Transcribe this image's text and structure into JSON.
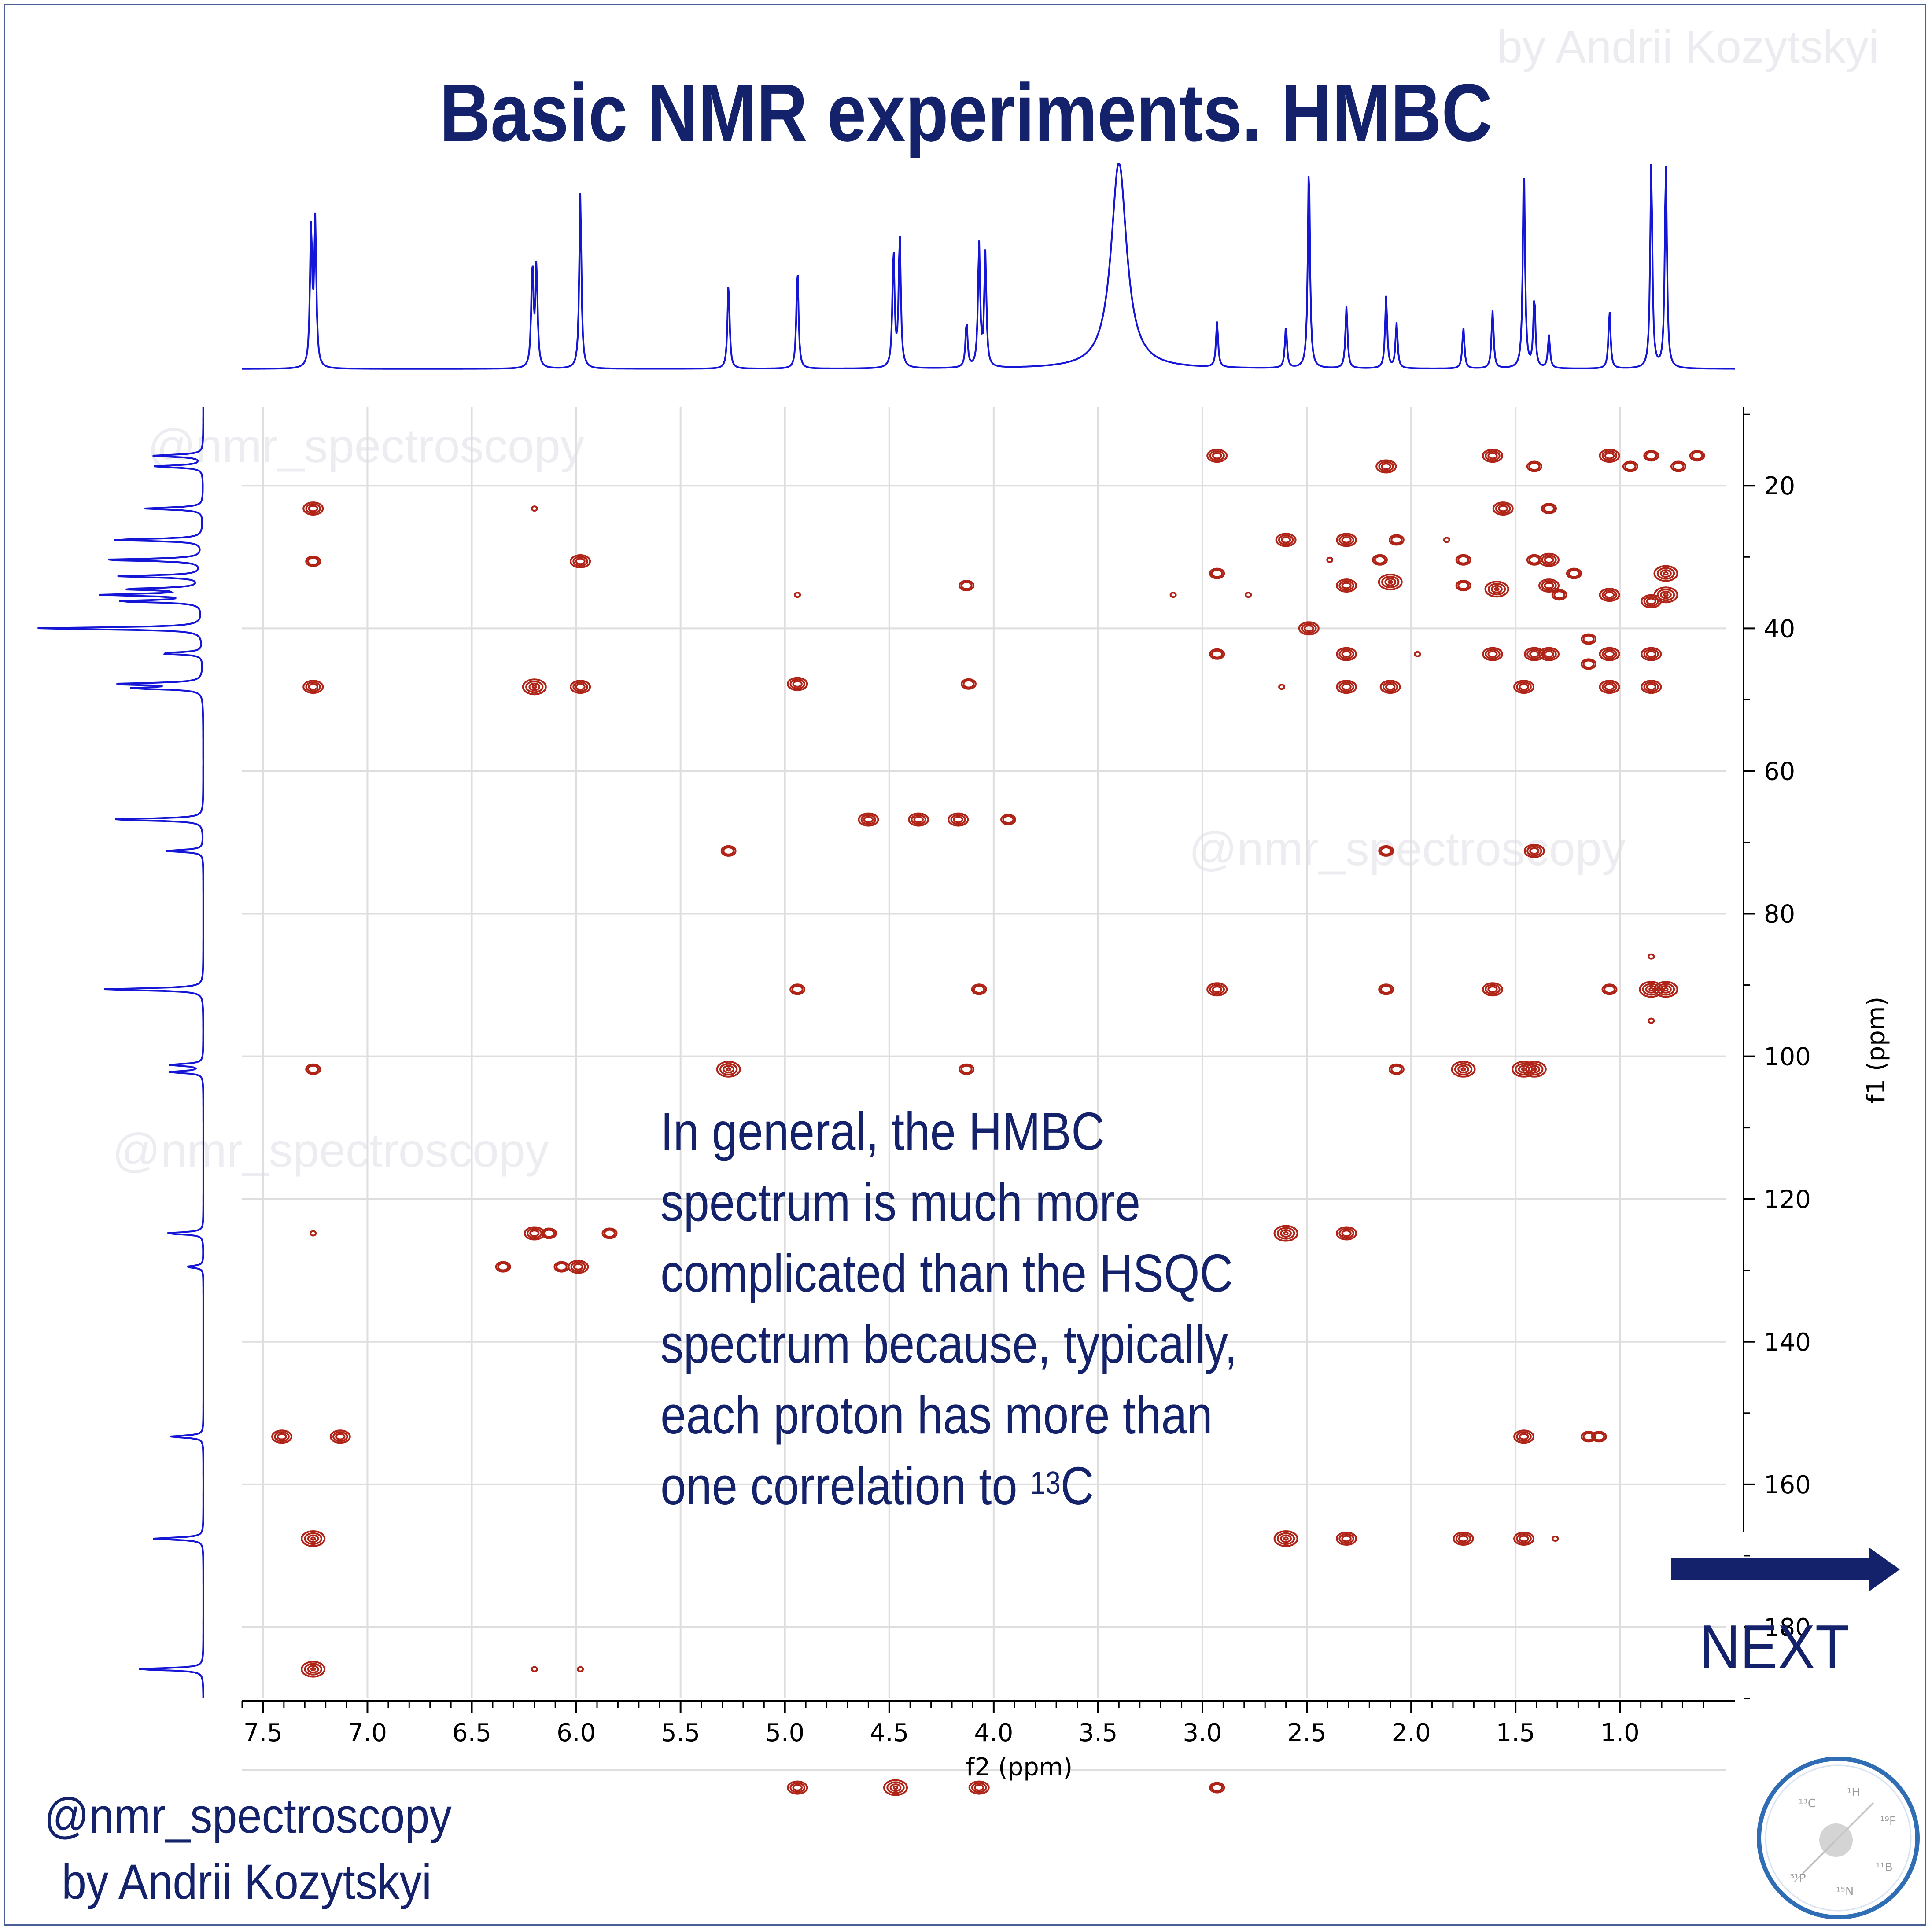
{
  "page": {
    "title": "Basic NMR experiments. HMBC",
    "watermark_text": "@nmr_spectroscopy",
    "watermark_author": "by Andrii Kozytskyi",
    "note": {
      "line1": "In general, the HMBC",
      "line2": "spectrum is much more",
      "line3": "complicated than the HSQC",
      "line4": "spectrum because, typically,",
      "line5": "each proton has more than",
      "line6_prefix": "one correlation to ",
      "line6_sup": "13",
      "line6_suffix": "C"
    },
    "next_label": "NEXT",
    "footer_handle": "@nmr_spectroscopy",
    "footer_author": "by Andrii Kozytskyi",
    "logo_nuclei": [
      "13C",
      "1H",
      "19F",
      "11B",
      "15N",
      "31P"
    ],
    "colors": {
      "title": "#13226b",
      "spectrum": "#1515d6",
      "contour": "#b02418",
      "grid": "#dedede"
    }
  },
  "chart_data": {
    "type": "heatmap",
    "xlabel": "f2 (ppm)",
    "ylabel": "f1 (ppm)",
    "xlim": [
      7.6,
      0.45
    ],
    "ylim": [
      9,
      190
    ],
    "x_ticks": [
      "7.5",
      "7.0",
      "6.5",
      "6.0",
      "5.5",
      "5.0",
      "4.5",
      "4.0",
      "3.5",
      "3.0",
      "2.5",
      "2.0",
      "1.5",
      "1.0"
    ],
    "y_ticks": [
      "20",
      "40",
      "60",
      "80",
      "100",
      "120",
      "140",
      "160",
      "180"
    ],
    "grid": true,
    "top_projection": {
      "label": "1H spectrum",
      "peaks": [
        {
          "ppm": 7.27,
          "h": 0.68
        },
        {
          "ppm": 7.25,
          "h": 0.7
        },
        {
          "ppm": 6.21,
          "h": 0.5
        },
        {
          "ppm": 6.19,
          "h": 0.49
        },
        {
          "ppm": 5.98,
          "h": 0.85
        },
        {
          "ppm": 5.27,
          "h": 0.42
        },
        {
          "ppm": 4.94,
          "h": 0.49
        },
        {
          "ppm": 4.48,
          "h": 0.57
        },
        {
          "ppm": 4.45,
          "h": 0.64
        },
        {
          "ppm": 4.13,
          "h": 0.22
        },
        {
          "ppm": 4.07,
          "h": 0.6
        },
        {
          "ppm": 4.04,
          "h": 0.55
        },
        {
          "ppm": 3.4,
          "h": 1.0
        },
        {
          "ppm": 2.93,
          "h": 0.22
        },
        {
          "ppm": 2.6,
          "h": 0.2
        },
        {
          "ppm": 2.49,
          "h": 1.0
        },
        {
          "ppm": 2.31,
          "h": 0.3
        },
        {
          "ppm": 2.12,
          "h": 0.35
        },
        {
          "ppm": 2.07,
          "h": 0.22
        },
        {
          "ppm": 1.75,
          "h": 0.2
        },
        {
          "ppm": 1.61,
          "h": 0.28
        },
        {
          "ppm": 1.46,
          "h": 1.0
        },
        {
          "ppm": 1.41,
          "h": 0.34
        },
        {
          "ppm": 1.34,
          "h": 0.16
        },
        {
          "ppm": 1.05,
          "h": 0.28
        },
        {
          "ppm": 0.85,
          "h": 1.0
        },
        {
          "ppm": 0.78,
          "h": 1.0
        }
      ]
    },
    "left_projection": {
      "label": "13C spectrum",
      "peaks": [
        {
          "ppm": 15.8,
          "h": 0.3
        },
        {
          "ppm": 17.3,
          "h": 0.3
        },
        {
          "ppm": 23.2,
          "h": 0.35
        },
        {
          "ppm": 27.6,
          "h": 0.55
        },
        {
          "ppm": 30.4,
          "h": 0.6
        },
        {
          "ppm": 32.7,
          "h": 0.5
        },
        {
          "ppm": 34.5,
          "h": 0.45
        },
        {
          "ppm": 35.3,
          "h": 0.58
        },
        {
          "ppm": 36.2,
          "h": 0.5
        },
        {
          "ppm": 40.0,
          "h": 1.0
        },
        {
          "ppm": 43.5,
          "h": 0.25
        },
        {
          "ppm": 47.8,
          "h": 0.52
        },
        {
          "ppm": 48.4,
          "h": 0.4
        },
        {
          "ppm": 66.8,
          "h": 0.55
        },
        {
          "ppm": 71.2,
          "h": 0.22
        },
        {
          "ppm": 90.6,
          "h": 0.6
        },
        {
          "ppm": 101.2,
          "h": 0.2
        },
        {
          "ppm": 102.2,
          "h": 0.2
        },
        {
          "ppm": 124.8,
          "h": 0.22
        },
        {
          "ppm": 129.5,
          "h": 0.1
        },
        {
          "ppm": 153.3,
          "h": 0.2
        },
        {
          "ppm": 167.6,
          "h": 0.3
        },
        {
          "ppm": 185.9,
          "h": 0.4
        },
        {
          "ppm": 202.5,
          "h": 0.4
        }
      ]
    },
    "correlations": [
      {
        "f2": 7.26,
        "f1": 23.2,
        "s": 2
      },
      {
        "f2": 7.26,
        "f1": 30.6,
        "s": 1
      },
      {
        "f2": 7.26,
        "f1": 48.2,
        "s": 2
      },
      {
        "f2": 7.26,
        "f1": 101.8,
        "s": 1
      },
      {
        "f2": 7.26,
        "f1": 124.8,
        "s": 0
      },
      {
        "f2": 7.41,
        "f1": 153.3,
        "s": 2
      },
      {
        "f2": 7.13,
        "f1": 153.3,
        "s": 2
      },
      {
        "f2": 7.26,
        "f1": 167.6,
        "s": 3
      },
      {
        "f2": 7.26,
        "f1": 185.9,
        "s": 3
      },
      {
        "f2": 6.2,
        "f1": 23.2,
        "s": 0
      },
      {
        "f2": 6.2,
        "f1": 48.2,
        "s": 3
      },
      {
        "f2": 5.98,
        "f1": 30.6,
        "s": 2
      },
      {
        "f2": 5.98,
        "f1": 48.2,
        "s": 2
      },
      {
        "f2": 6.2,
        "f1": 124.8,
        "s": 2
      },
      {
        "f2": 6.13,
        "f1": 124.8,
        "s": 1
      },
      {
        "f2": 5.84,
        "f1": 124.8,
        "s": 1
      },
      {
        "f2": 6.35,
        "f1": 129.5,
        "s": 1
      },
      {
        "f2": 6.07,
        "f1": 129.5,
        "s": 1
      },
      {
        "f2": 5.99,
        "f1": 129.5,
        "s": 2
      },
      {
        "f2": 6.2,
        "f1": 185.9,
        "s": 0
      },
      {
        "f2": 5.98,
        "f1": 185.9,
        "s": 0
      },
      {
        "f2": 5.27,
        "f1": 71.2,
        "s": 1
      },
      {
        "f2": 5.27,
        "f1": 101.8,
        "s": 3
      },
      {
        "f2": 4.94,
        "f1": 35.3,
        "s": 0
      },
      {
        "f2": 4.94,
        "f1": 47.8,
        "s": 2
      },
      {
        "f2": 4.94,
        "f1": 90.6,
        "s": 1
      },
      {
        "f2": 4.94,
        "f1": 202.5,
        "s": 2
      },
      {
        "f2": 4.6,
        "f1": 66.8,
        "s": 2
      },
      {
        "f2": 4.36,
        "f1": 66.8,
        "s": 2
      },
      {
        "f2": 4.17,
        "f1": 66.8,
        "s": 2
      },
      {
        "f2": 3.93,
        "f1": 66.8,
        "s": 1
      },
      {
        "f2": 4.47,
        "f1": 202.5,
        "s": 3
      },
      {
        "f2": 4.07,
        "f1": 202.5,
        "s": 2
      },
      {
        "f2": 4.13,
        "f1": 34.0,
        "s": 1
      },
      {
        "f2": 4.12,
        "f1": 47.8,
        "s": 1
      },
      {
        "f2": 4.13,
        "f1": 101.8,
        "s": 1
      },
      {
        "f2": 4.07,
        "f1": 90.6,
        "s": 1
      },
      {
        "f2": 2.93,
        "f1": 15.8,
        "s": 2
      },
      {
        "f2": 2.93,
        "f1": 32.3,
        "s": 1
      },
      {
        "f2": 2.93,
        "f1": 43.6,
        "s": 1
      },
      {
        "f2": 2.93,
        "f1": 90.6,
        "s": 2
      },
      {
        "f2": 2.93,
        "f1": 202.5,
        "s": 1
      },
      {
        "f2": 3.14,
        "f1": 35.3,
        "s": 0
      },
      {
        "f2": 2.6,
        "f1": 27.6,
        "s": 2
      },
      {
        "f2": 2.49,
        "f1": 40.0,
        "s": 2
      },
      {
        "f2": 2.31,
        "f1": 27.6,
        "s": 2
      },
      {
        "f2": 2.31,
        "f1": 34.0,
        "s": 2
      },
      {
        "f2": 2.31,
        "f1": 43.6,
        "s": 2
      },
      {
        "f2": 2.31,
        "f1": 48.2,
        "s": 2
      },
      {
        "f2": 2.6,
        "f1": 124.8,
        "s": 3
      },
      {
        "f2": 2.31,
        "f1": 124.8,
        "s": 2
      },
      {
        "f2": 2.6,
        "f1": 167.6,
        "s": 3
      },
      {
        "f2": 2.31,
        "f1": 167.6,
        "s": 2
      },
      {
        "f2": 2.12,
        "f1": 17.3,
        "s": 2
      },
      {
        "f2": 2.07,
        "f1": 27.6,
        "s": 1
      },
      {
        "f2": 2.1,
        "f1": 33.5,
        "s": 3
      },
      {
        "f2": 2.1,
        "f1": 48.2,
        "s": 2
      },
      {
        "f2": 2.12,
        "f1": 71.2,
        "s": 1
      },
      {
        "f2": 2.12,
        "f1": 90.6,
        "s": 1
      },
      {
        "f2": 2.07,
        "f1": 101.8,
        "s": 1
      },
      {
        "f2": 1.75,
        "f1": 30.4,
        "s": 1
      },
      {
        "f2": 1.75,
        "f1": 34.0,
        "s": 1
      },
      {
        "f2": 1.61,
        "f1": 15.8,
        "s": 2
      },
      {
        "f2": 1.59,
        "f1": 34.5,
        "s": 3
      },
      {
        "f2": 1.61,
        "f1": 43.6,
        "s": 2
      },
      {
        "f2": 1.61,
        "f1": 90.6,
        "s": 2
      },
      {
        "f2": 1.75,
        "f1": 101.8,
        "s": 3
      },
      {
        "f2": 1.75,
        "f1": 167.6,
        "s": 2
      },
      {
        "f2": 1.56,
        "f1": 23.2,
        "s": 2
      },
      {
        "f2": 1.46,
        "f1": 167.6,
        "s": 2
      },
      {
        "f2": 1.46,
        "f1": 153.3,
        "s": 2
      },
      {
        "f2": 1.46,
        "f1": 101.8,
        "s": 3
      },
      {
        "f2": 1.41,
        "f1": 101.8,
        "s": 3
      },
      {
        "f2": 1.41,
        "f1": 71.2,
        "s": 2
      },
      {
        "f2": 1.41,
        "f1": 17.3,
        "s": 1
      },
      {
        "f2": 1.46,
        "f1": 48.2,
        "s": 2
      },
      {
        "f2": 1.41,
        "f1": 43.6,
        "s": 2
      },
      {
        "f2": 1.34,
        "f1": 23.2,
        "s": 1
      },
      {
        "f2": 1.34,
        "f1": 30.4,
        "s": 2
      },
      {
        "f2": 1.34,
        "f1": 34.0,
        "s": 2
      },
      {
        "f2": 1.34,
        "f1": 43.6,
        "s": 2
      },
      {
        "f2": 1.41,
        "f1": 30.4,
        "s": 1
      },
      {
        "f2": 1.05,
        "f1": 15.8,
        "s": 2
      },
      {
        "f2": 1.05,
        "f1": 35.3,
        "s": 2
      },
      {
        "f2": 1.05,
        "f1": 43.6,
        "s": 2
      },
      {
        "f2": 1.05,
        "f1": 48.2,
        "s": 2
      },
      {
        "f2": 1.05,
        "f1": 90.6,
        "s": 1
      },
      {
        "f2": 1.15,
        "f1": 41.5,
        "s": 1
      },
      {
        "f2": 1.15,
        "f1": 45.0,
        "s": 1
      },
      {
        "f2": 1.15,
        "f1": 153.3,
        "s": 1
      },
      {
        "f2": 1.1,
        "f1": 153.3,
        "s": 1
      },
      {
        "f2": 0.85,
        "f1": 15.8,
        "s": 1
      },
      {
        "f2": 0.85,
        "f1": 36.2,
        "s": 2
      },
      {
        "f2": 0.85,
        "f1": 43.6,
        "s": 2
      },
      {
        "f2": 0.85,
        "f1": 48.2,
        "s": 2
      },
      {
        "f2": 0.85,
        "f1": 90.6,
        "s": 3
      },
      {
        "f2": 0.78,
        "f1": 32.3,
        "s": 3
      },
      {
        "f2": 0.78,
        "f1": 35.3,
        "s": 3
      },
      {
        "f2": 0.78,
        "f1": 90.6,
        "s": 3
      },
      {
        "f2": 0.95,
        "f1": 17.3,
        "s": 1
      },
      {
        "f2": 0.72,
        "f1": 17.3,
        "s": 1
      },
      {
        "f2": 0.63,
        "f1": 15.8,
        "s": 1
      },
      {
        "f2": 0.85,
        "f1": 86.0,
        "s": 0
      },
      {
        "f2": 0.85,
        "f1": 95.0,
        "s": 0
      },
      {
        "f2": 1.31,
        "f1": 167.6,
        "s": 0
      },
      {
        "f2": 1.22,
        "f1": 32.3,
        "s": 1
      },
      {
        "f2": 1.83,
        "f1": 27.6,
        "s": 0
      },
      {
        "f2": 2.39,
        "f1": 30.4,
        "s": 0
      },
      {
        "f2": 2.78,
        "f1": 35.3,
        "s": 0
      },
      {
        "f2": 1.97,
        "f1": 43.6,
        "s": 0
      },
      {
        "f2": 2.62,
        "f1": 48.2,
        "s": 0
      },
      {
        "f2": 1.29,
        "f1": 35.3,
        "s": 1
      },
      {
        "f2": 2.15,
        "f1": 30.4,
        "s": 1
      }
    ]
  }
}
